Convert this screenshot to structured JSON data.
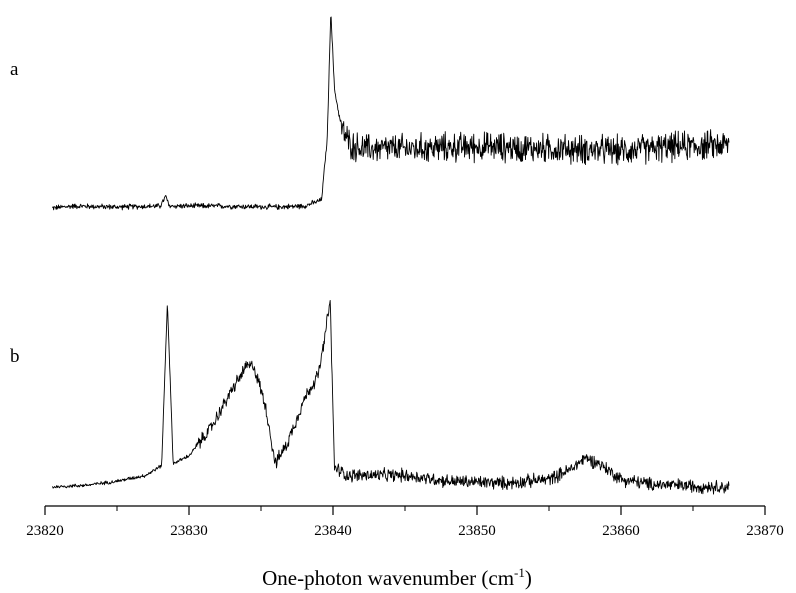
{
  "chart_data": {
    "type": "line",
    "xlabel": "One-photon wavenumber (cm",
    "xlabel_sup": "-1",
    "xlabel_tail": ")",
    "ylabel": "",
    "xlim": [
      23820,
      23870
    ],
    "x_ticks": [
      23820,
      23830,
      23840,
      23850,
      23860,
      23870
    ],
    "x_tick_labels": [
      "23820",
      "23830",
      "23840",
      "23850",
      "23860",
      "23870"
    ],
    "ylim": [
      0,
      1
    ],
    "grid": false,
    "legend": "none",
    "color": "#000000",
    "panels": [
      {
        "label": "a",
        "noise": [
          0.012,
          0.065
        ],
        "noise_step_x": 23840.5,
        "points": [
          [
            23820.5,
            0.0
          ],
          [
            23822,
            0.01
          ],
          [
            23825,
            0.005
          ],
          [
            23828,
            0.01
          ],
          [
            23828.4,
            0.06
          ],
          [
            23828.6,
            0.01
          ],
          [
            23832,
            0.01
          ],
          [
            23836,
            0.005
          ],
          [
            23838,
            0.01
          ],
          [
            23839.2,
            0.04
          ],
          [
            23839.6,
            0.35
          ],
          [
            23839.85,
            1.0
          ],
          [
            23840.1,
            0.6
          ],
          [
            23840.6,
            0.4
          ],
          [
            23841.2,
            0.32
          ],
          [
            23842,
            0.3
          ],
          [
            23845,
            0.3
          ],
          [
            23850,
            0.31
          ],
          [
            23855,
            0.3
          ],
          [
            23860,
            0.29
          ],
          [
            23864,
            0.31
          ],
          [
            23867.5,
            0.32
          ]
        ]
      },
      {
        "label": "b",
        "noise": [
          0.008,
          0.03
        ],
        "noise_step_x": 23830.5,
        "points": [
          [
            23820.5,
            0.0
          ],
          [
            23823,
            0.01
          ],
          [
            23825,
            0.03
          ],
          [
            23827,
            0.06
          ],
          [
            23828.1,
            0.11
          ],
          [
            23828.5,
            0.95
          ],
          [
            23828.9,
            0.12
          ],
          [
            23830,
            0.16
          ],
          [
            23831.5,
            0.3
          ],
          [
            23833,
            0.5
          ],
          [
            23834,
            0.62
          ],
          [
            23834.5,
            0.62
          ],
          [
            23835.3,
            0.42
          ],
          [
            23836,
            0.12
          ],
          [
            23836.8,
            0.22
          ],
          [
            23838,
            0.45
          ],
          [
            23839,
            0.58
          ],
          [
            23839.4,
            0.75
          ],
          [
            23839.8,
            0.96
          ],
          [
            23840.1,
            0.1
          ],
          [
            23841,
            0.06
          ],
          [
            23845,
            0.06
          ],
          [
            23848,
            0.03
          ],
          [
            23852,
            0.02
          ],
          [
            23855,
            0.04
          ],
          [
            23856.5,
            0.09
          ],
          [
            23857.5,
            0.15
          ],
          [
            23858.5,
            0.12
          ],
          [
            23860,
            0.04
          ],
          [
            23862,
            0.015
          ],
          [
            23865,
            0.005
          ],
          [
            23867.5,
            0.0
          ]
        ]
      }
    ]
  }
}
